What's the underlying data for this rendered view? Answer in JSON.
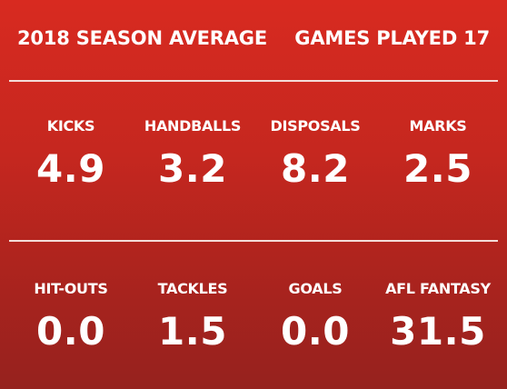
{
  "header": {
    "title": "2018 SEASON AVERAGE",
    "games_played": "GAMES PLAYED 17"
  },
  "stats_row_1": [
    {
      "label": "KICKS",
      "value": "4.9"
    },
    {
      "label": "HANDBALLS",
      "value": "3.2"
    },
    {
      "label": "DISPOSALS",
      "value": "8.2"
    },
    {
      "label": "MARKS",
      "value": "2.5"
    }
  ],
  "stats_row_2": [
    {
      "label": "HIT-OUTS",
      "value": "0.0"
    },
    {
      "label": "TACKLES",
      "value": "1.5"
    },
    {
      "label": "GOALS",
      "value": "0.0"
    },
    {
      "label": "AFL FANTASY",
      "value": "31.5"
    }
  ],
  "colors": {
    "background_top": "#d82a20",
    "background_bottom": "#96221e",
    "text": "#ffffff",
    "divider": "#f4dcd9"
  }
}
